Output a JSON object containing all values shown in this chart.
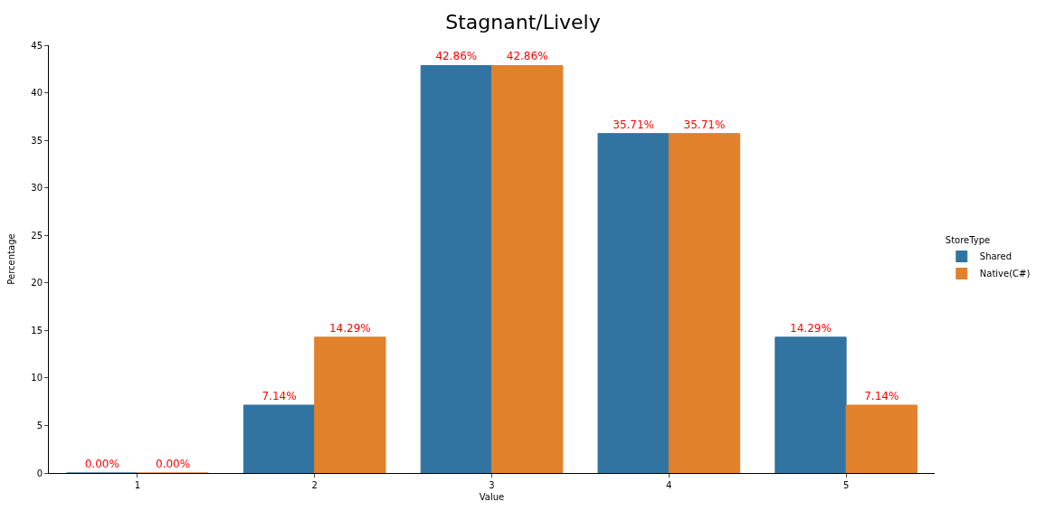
{
  "chart_data": {
    "type": "bar",
    "title": "Stagnant/Lively",
    "xlabel": "Value",
    "ylabel": "Percentage",
    "legend_title": "StoreType",
    "categories": [
      "1",
      "2",
      "3",
      "4",
      "5"
    ],
    "series": [
      {
        "name": "Shared",
        "color": "#3274a1",
        "values": [
          0,
          7.14,
          42.86,
          35.71,
          14.29
        ],
        "value_labels": [
          "0.00%",
          "7.14%",
          "42.86%",
          "35.71%",
          "14.29%"
        ]
      },
      {
        "name": "Native(C#)",
        "color": "#e1812c",
        "values": [
          0,
          14.29,
          42.86,
          35.71,
          7.14
        ],
        "value_labels": [
          "0.00%",
          "14.29%",
          "42.86%",
          "35.71%",
          "7.14%"
        ]
      }
    ],
    "ylim": [
      0,
      45
    ],
    "yticks": [
      0,
      5,
      10,
      15,
      20,
      25,
      30,
      35,
      40,
      45
    ],
    "legend": "right"
  }
}
